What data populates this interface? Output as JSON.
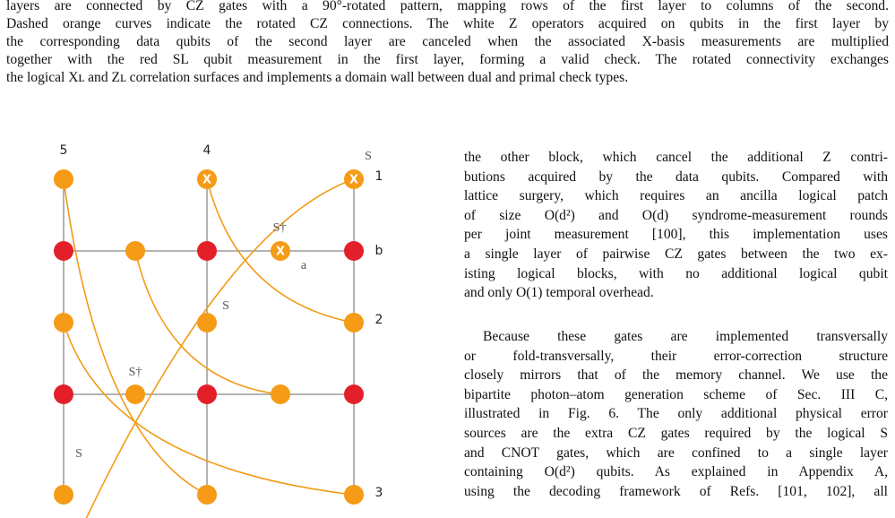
{
  "caption": {
    "lines": [
      "layers are connected by CZ gates with a 90°-rotated pattern, mapping rows of the first layer to columns of the second.",
      "Dashed orange curves indicate the rotated CZ connections. The white Z operators acquired on qubits in the first layer by",
      "the corresponding data qubits of the second layer are canceled when the associated X-basis measurements are multiplied",
      "together with the red SL qubit measurement in the first layer, forming a valid check. The rotated connectivity exchanges",
      "the logical Xʟ and Zʟ correlation surfaces and implements a domain wall between dual and primal check types."
    ]
  },
  "diagram": {
    "labels": [
      "5",
      "4",
      "S",
      "1",
      "S†",
      "a",
      "b",
      "S",
      "2",
      "S†",
      "S",
      "3"
    ],
    "node_labels": [
      "X",
      "X",
      "X"
    ]
  },
  "body": {
    "paragraphs": [
      {
        "lines": [
          "the other block, which cancel the additional Z contri-",
          "butions acquired by the data qubits. Compared with",
          "lattice surgery, which requires an ancilla logical patch",
          "of size O(d²) and O(d) syndrome-measurement rounds",
          "per joint measurement [100], this implementation uses",
          "a single layer of pairwise CZ gates between the two ex-",
          "isting logical blocks, with no additional logical qubit",
          "and only O(1) temporal overhead."
        ]
      },
      {
        "lines": [
          "Because these gates are implemented transversally",
          "or fold-transversally, their error-correction structure",
          "closely mirrors that of the memory channel. We use the",
          "bipartite photon–atom generation scheme of Sec. III C,",
          "illustrated in Fig. 6. The only additional physical error",
          "sources are the extra CZ gates required by the logical S",
          "and CNOT gates, which are confined to a single layer",
          "containing O(d²) qubits. As explained in Appendix A,",
          "using the decoding framework of Refs. [101, 102], all"
        ]
      }
    ]
  }
}
